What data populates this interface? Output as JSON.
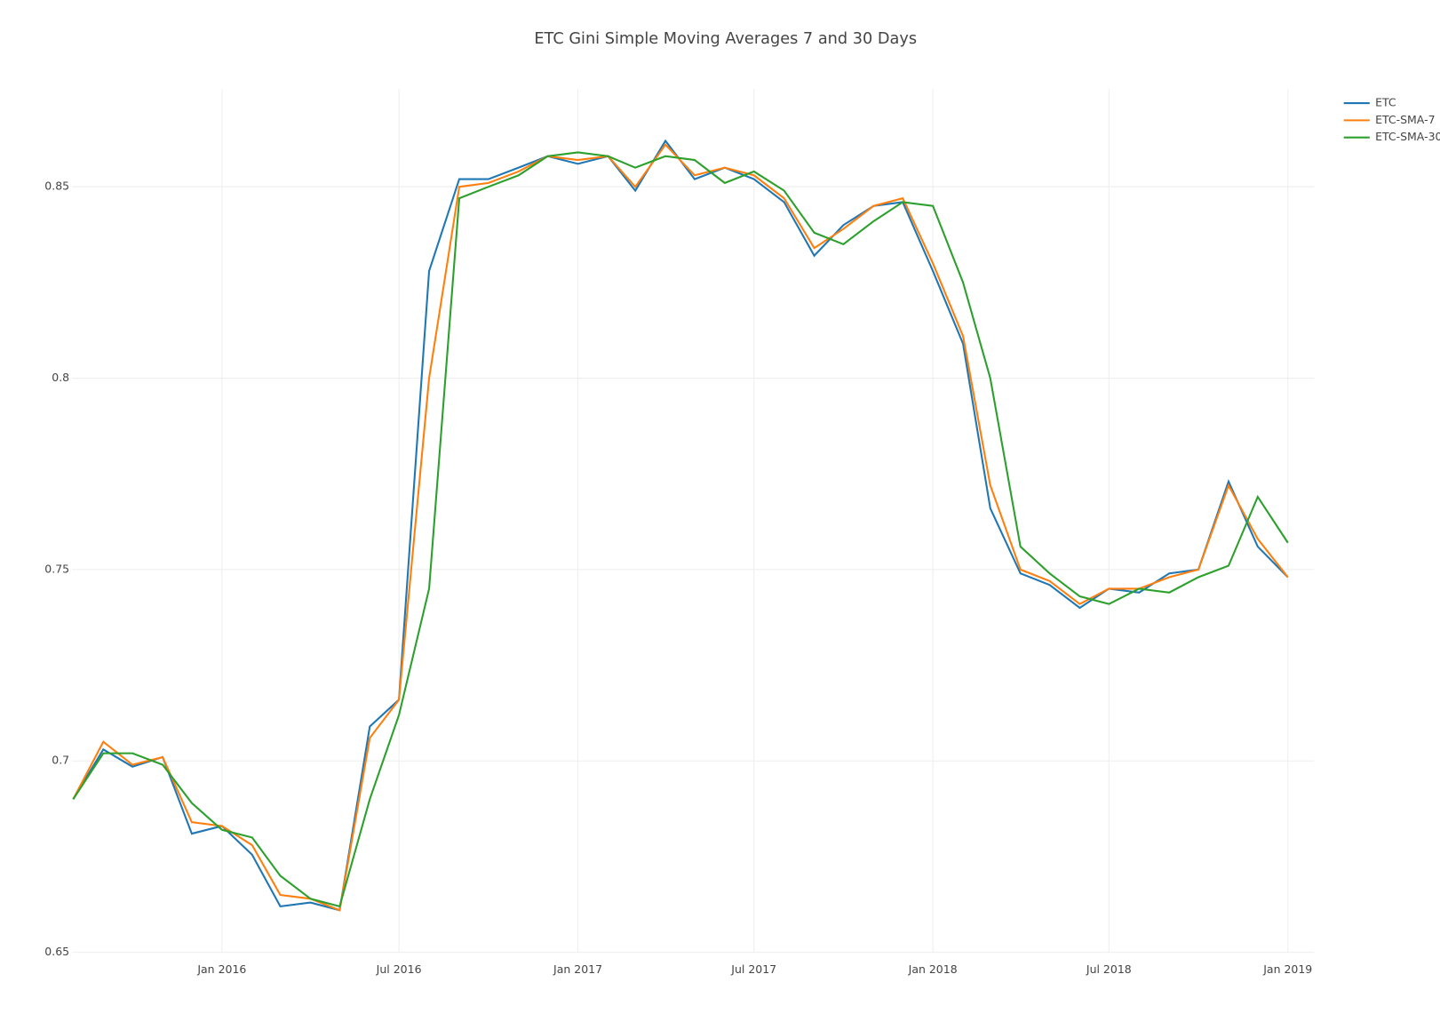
{
  "chart_data": {
    "type": "line",
    "title": "ETC Gini Simple Moving Averages 7 and 30 Days",
    "x": [
      "2015-08",
      "2015-09",
      "2015-10",
      "2015-11",
      "2015-12",
      "2016-01",
      "2016-02",
      "2016-03",
      "2016-04",
      "2016-05",
      "2016-06",
      "2016-07",
      "2016-08",
      "2016-09",
      "2016-10",
      "2016-11",
      "2016-12",
      "2017-01",
      "2017-02",
      "2017-03",
      "2017-04",
      "2017-05",
      "2017-06",
      "2017-07",
      "2017-08",
      "2017-09",
      "2017-10",
      "2017-11",
      "2017-12",
      "2018-01",
      "2018-02",
      "2018-03",
      "2018-04",
      "2018-05",
      "2018-06",
      "2018-07",
      "2018-08",
      "2018-09",
      "2018-10",
      "2018-11",
      "2018-12",
      "2019-01"
    ],
    "series": [
      {
        "name": "ETC",
        "color": "#1f77b4",
        "values": [
          0.69,
          0.703,
          0.6985,
          0.701,
          0.681,
          0.683,
          0.6755,
          0.662,
          0.663,
          0.661,
          0.709,
          0.716,
          0.828,
          0.852,
          0.852,
          0.855,
          0.858,
          0.856,
          0.858,
          0.849,
          0.862,
          0.852,
          0.855,
          0.852,
          0.846,
          0.832,
          0.84,
          0.845,
          0.846,
          0.828,
          0.809,
          0.766,
          0.749,
          0.746,
          0.74,
          0.745,
          0.744,
          0.749,
          0.75,
          0.773,
          0.756,
          0.748
        ]
      },
      {
        "name": "ETC-SMA-7",
        "color": "#ff7f0e",
        "values": [
          0.69,
          0.705,
          0.699,
          0.701,
          0.684,
          0.683,
          0.678,
          0.665,
          0.664,
          0.661,
          0.706,
          0.716,
          0.8,
          0.85,
          0.851,
          0.854,
          0.858,
          0.857,
          0.858,
          0.85,
          0.861,
          0.853,
          0.855,
          0.853,
          0.847,
          0.834,
          0.839,
          0.845,
          0.847,
          0.83,
          0.811,
          0.772,
          0.75,
          0.747,
          0.741,
          0.745,
          0.745,
          0.748,
          0.75,
          0.772,
          0.758,
          0.748
        ]
      },
      {
        "name": "ETC-SMA-30",
        "color": "#2ca02c",
        "values": [
          0.69,
          0.702,
          0.702,
          0.699,
          0.689,
          0.682,
          0.68,
          0.67,
          0.664,
          0.662,
          0.69,
          0.712,
          0.745,
          0.847,
          0.85,
          0.853,
          0.858,
          0.859,
          0.858,
          0.855,
          0.858,
          0.857,
          0.851,
          0.854,
          0.849,
          0.838,
          0.835,
          0.841,
          0.846,
          0.845,
          0.825,
          0.8,
          0.756,
          0.749,
          0.743,
          0.741,
          0.745,
          0.744,
          0.748,
          0.751,
          0.769,
          0.757
        ]
      }
    ],
    "xlim": [
      "2015-07-31",
      "2019-01-28"
    ],
    "xticks": [
      {
        "value": "2016-01",
        "label": "Jan 2016"
      },
      {
        "value": "2016-07",
        "label": "Jul 2016"
      },
      {
        "value": "2017-01",
        "label": "Jan 2017"
      },
      {
        "value": "2017-07",
        "label": "Jul 2017"
      },
      {
        "value": "2018-01",
        "label": "Jan 2018"
      },
      {
        "value": "2018-07",
        "label": "Jul 2018"
      },
      {
        "value": "2019-01",
        "label": "Jan 2019"
      }
    ],
    "ylim": [
      0.65,
      0.8755
    ],
    "yticks": [
      0.65,
      0.7,
      0.75,
      0.8,
      0.85
    ],
    "grid": true,
    "legend": "top-right"
  }
}
